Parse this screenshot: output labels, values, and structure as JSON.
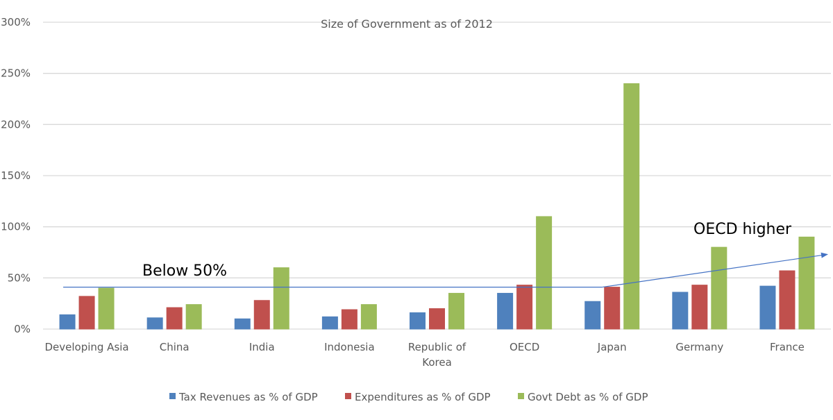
{
  "chart_data": {
    "type": "bar",
    "title": "Size of Government as of 2012",
    "xlabel": "",
    "ylabel": "",
    "ylim": [
      0,
      300
    ],
    "yticks": [
      0,
      50,
      100,
      150,
      200,
      250,
      300
    ],
    "ytick_labels": [
      "0%",
      "50%",
      "100%",
      "150%",
      "200%",
      "250%",
      "300%"
    ],
    "grid": true,
    "legend_position": "bottom",
    "categories": [
      [
        "Developing Asia"
      ],
      [
        "China"
      ],
      [
        "India"
      ],
      [
        "Indonesia"
      ],
      [
        "Republic of",
        "Korea"
      ],
      [
        "OECD"
      ],
      [
        "Japan"
      ],
      [
        "Germany"
      ],
      [
        "France"
      ]
    ],
    "series": [
      {
        "name": "Tax Revenues as % of GDP",
        "color": "#4f81bd",
        "values": [
          14,
          11,
          10,
          12,
          16,
          35,
          27,
          36,
          42
        ]
      },
      {
        "name": "Expenditures as % of GDP",
        "color": "#c0504d",
        "values": [
          32,
          21,
          28,
          19,
          20,
          43,
          41,
          43,
          57
        ]
      },
      {
        "name": "Govt Debt as % of GDP",
        "color": "#9bbb59",
        "values": [
          40,
          24,
          60,
          24,
          35,
          110,
          240,
          80,
          90
        ]
      }
    ],
    "annotations": [
      {
        "text": "Below 50%",
        "line_value": 41,
        "from_category": 0,
        "to_category": 6
      },
      {
        "text": "OECD higher",
        "arrow_from": {
          "category": 6,
          "value": 41
        },
        "arrow_to": {
          "category": 8,
          "value": 73
        }
      }
    ],
    "annotation_color": "#4472c4"
  }
}
